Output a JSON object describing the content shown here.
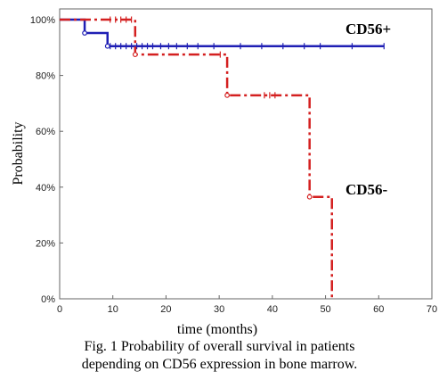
{
  "caption": {
    "line1": "Fig. 1 Probability of overall survival in patients",
    "line2": "depending on CD56 expression in bone marrow."
  },
  "chart_data": {
    "type": "line",
    "title": "",
    "xlabel": "time  (months)",
    "ylabel": "Probability",
    "xlim": [
      0,
      70
    ],
    "ylim": [
      0,
      1
    ],
    "xticks": [
      0,
      10,
      20,
      30,
      40,
      50,
      60,
      70
    ],
    "yticks": [
      0,
      0.2,
      0.4,
      0.6,
      0.8,
      1.0
    ],
    "ytick_labels": [
      "0%",
      "20%",
      "40%",
      "60%",
      "80%",
      "100%"
    ],
    "grid": false,
    "legend": "none",
    "series": [
      {
        "name": "CD56+",
        "color": "#1f1fb4",
        "style": "solid",
        "steps": [
          [
            0,
            1.0
          ],
          [
            4.7,
            0.952
          ],
          [
            9.0,
            0.905
          ],
          [
            61,
            0.905
          ]
        ],
        "events": [
          [
            4.7,
            0.952
          ],
          [
            9.0,
            0.905
          ]
        ],
        "censored": [
          9.5,
          10.5,
          11.5,
          12.5,
          13.5,
          14.5,
          15.5,
          16.5,
          17.5,
          19,
          20.5,
          22,
          24,
          26,
          29,
          34,
          38,
          42,
          46,
          49,
          55,
          61
        ]
      },
      {
        "name": "CD56-",
        "color": "#d42020",
        "style": "dashdot",
        "steps": [
          [
            0,
            1.0
          ],
          [
            14.2,
            0.875
          ],
          [
            31.5,
            0.729
          ],
          [
            47.0,
            0.365
          ],
          [
            51.2,
            0.0
          ]
        ],
        "events": [
          [
            14.2,
            0.875
          ],
          [
            31.5,
            0.729
          ],
          [
            47.0,
            0.365
          ]
        ],
        "censored": [
          9.5,
          10.5,
          11.5,
          12.5,
          13.5,
          30.2,
          38.5,
          39.5,
          40.5
        ]
      }
    ]
  }
}
